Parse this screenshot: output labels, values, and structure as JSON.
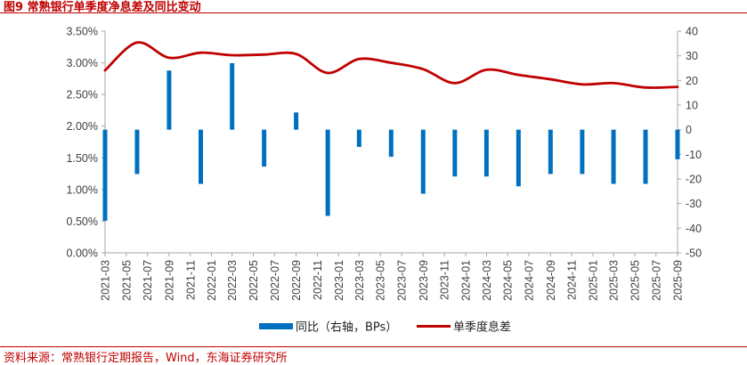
{
  "header": {
    "title": "图9 常熟银行单季度净息差及同比变动"
  },
  "footer": {
    "source": "资料来源：常熟银行定期报告，Wind，东海证券研究所"
  },
  "chart_data": {
    "type": "bar+line",
    "title": "图9 常熟银行单季度净息差及同比变动",
    "categories": [
      "2021-03",
      "2021-05",
      "2021-07",
      "2021-09",
      "2021-11",
      "2022-01",
      "2022-03",
      "2022-05",
      "2022-07",
      "2022-09",
      "2022-11",
      "2023-01",
      "2023-03",
      "2023-05",
      "2023-07",
      "2023-09",
      "2023-11",
      "2024-01",
      "2024-03",
      "2024-05",
      "2024-07",
      "2024-09",
      "2024-11",
      "2025-01",
      "2025-03",
      "2025-05",
      "2025-07",
      "2025-09"
    ],
    "left_axis": {
      "ticks": [
        "0.00%",
        "0.50%",
        "1.00%",
        "1.50%",
        "2.00%",
        "2.50%",
        "3.00%",
        "3.50%"
      ],
      "ylim": [
        0,
        3.5
      ]
    },
    "right_axis": {
      "ticks": [
        "-50",
        "-40",
        "-30",
        "-20",
        "-10",
        "0",
        "10",
        "20",
        "30",
        "40"
      ],
      "ylim": [
        -50,
        40
      ]
    },
    "series": [
      {
        "name": "同比（右轴，BPs）",
        "kind": "bar",
        "axis": "right",
        "color": "#0070c0",
        "x": [
          "2021-03",
          "2021-06",
          "2021-09",
          "2021-12",
          "2022-03",
          "2022-06",
          "2022-09",
          "2022-12",
          "2023-03",
          "2023-06",
          "2023-09",
          "2023-12",
          "2024-03",
          "2024-06",
          "2024-09",
          "2024-12",
          "2025-03",
          "2025-06",
          "2025-09"
        ],
        "values": [
          -37,
          -18,
          24,
          -22,
          27,
          -15,
          7,
          -35,
          -7,
          -11,
          -26,
          -19,
          -19,
          -23,
          -18,
          -18,
          -22,
          -22,
          -12
        ]
      },
      {
        "name": "单季度息差",
        "kind": "line",
        "axis": "left",
        "color": "#c00000",
        "x": [
          "2021-03",
          "2021-06",
          "2021-09",
          "2021-12",
          "2022-03",
          "2022-06",
          "2022-09",
          "2022-12",
          "2023-03",
          "2023-06",
          "2023-09",
          "2023-12",
          "2024-03",
          "2024-06",
          "2024-09",
          "2024-12",
          "2025-03",
          "2025-06",
          "2025-09"
        ],
        "values": [
          2.88,
          3.32,
          3.08,
          3.16,
          3.12,
          3.13,
          3.14,
          2.84,
          3.06,
          3.0,
          2.9,
          2.68,
          2.89,
          2.81,
          2.74,
          2.66,
          2.68,
          2.61,
          2.62
        ]
      }
    ]
  }
}
